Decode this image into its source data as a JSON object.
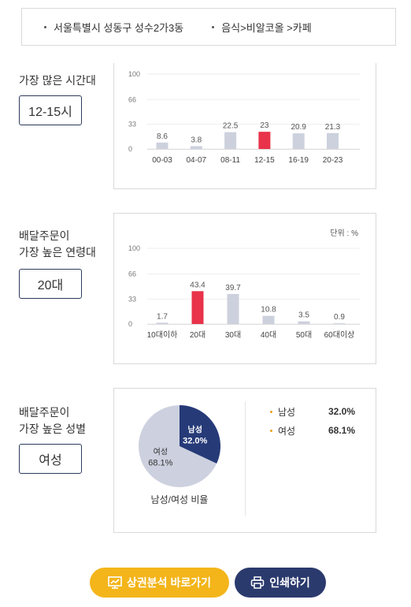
{
  "location": {
    "address": "서울특별시 성동구 성수2가3동",
    "category": "음식>비알코올 >카페"
  },
  "time_section": {
    "label": "가장 많은 시간대",
    "value": "12-15시"
  },
  "age_section": {
    "label_line1": "배달주문이",
    "label_line2": "가장 높은 연령대",
    "value": "20대",
    "unit_note": "단위 : %"
  },
  "gender_section": {
    "label_line1": "배달주문이",
    "label_line2": "가장 높은 성별",
    "value": "여성",
    "pie_caption": "남성/여성 비율",
    "legend": [
      {
        "name": "남성",
        "value": "32.0%"
      },
      {
        "name": "여성",
        "value": "68.1%"
      }
    ]
  },
  "buttons": {
    "analysis": "상권분석 바로가기",
    "print": "인쇄하기"
  },
  "colors": {
    "bar_default": "#cdd1dd",
    "bar_highlight": "#e8334a",
    "pie_male": "#263a78",
    "pie_female": "#cdd1df",
    "accent_yellow": "#f3b51a",
    "accent_navy": "#2b3a6d"
  },
  "chart_data": [
    {
      "type": "bar",
      "categories": [
        "00-03",
        "04-07",
        "08-11",
        "12-15",
        "16-19",
        "20-23"
      ],
      "values": [
        8.6,
        3.8,
        22.5,
        23,
        20.9,
        21.3
      ],
      "value_labels": [
        "8.6",
        "3.8",
        "22.5",
        "23",
        "20.9",
        "21.3"
      ],
      "highlight_index": 3,
      "yticks": [
        "100",
        "66",
        "33",
        "0"
      ],
      "ylim": [
        0,
        100
      ]
    },
    {
      "type": "bar",
      "categories": [
        "10대이하",
        "20대",
        "30대",
        "40대",
        "50대",
        "60대이상"
      ],
      "values": [
        1.7,
        43.4,
        39.7,
        10.8,
        3.5,
        0.9
      ],
      "value_labels": [
        "1.7",
        "43.4",
        "39.7",
        "10.8",
        "3.5",
        "0.9"
      ],
      "highlight_index": 1,
      "yticks": [
        "100",
        "66",
        "33",
        "0"
      ],
      "ylim": [
        0,
        100
      ]
    },
    {
      "type": "pie",
      "categories": [
        "남성",
        "여성"
      ],
      "values": [
        32.0,
        68.1
      ],
      "slice_labels": [
        {
          "name": "남성",
          "value": "32.0%"
        },
        {
          "name": "여성",
          "value": "68.1%"
        }
      ]
    }
  ]
}
